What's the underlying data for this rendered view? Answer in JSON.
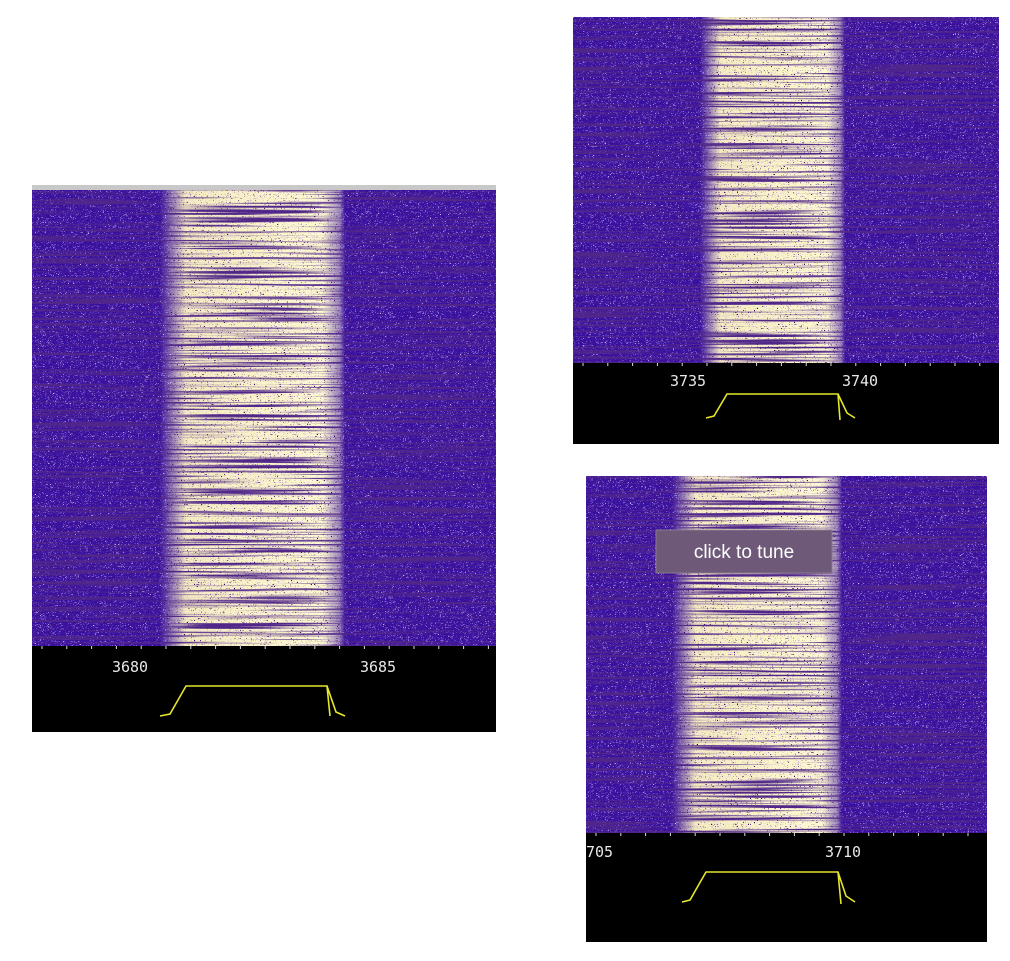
{
  "panels": [
    {
      "scale_labels": [
        "3680",
        "3685"
      ]
    },
    {
      "scale_labels": [
        "3735",
        "3740"
      ]
    },
    {
      "scale_labels": [
        "705",
        "3710"
      ]
    }
  ],
  "tooltip": "click to tune"
}
